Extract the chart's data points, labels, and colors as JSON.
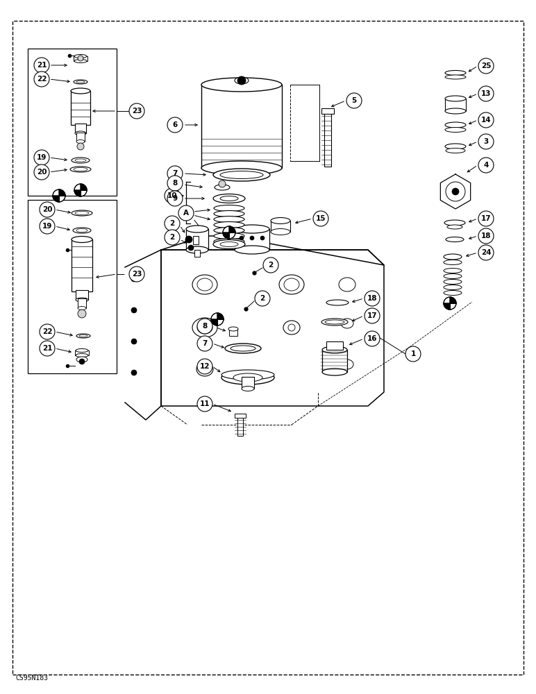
{
  "bg_color": "#ffffff",
  "fig_width": 7.72,
  "fig_height": 10.0,
  "dpi": 100,
  "footer_text": "CS95N183"
}
